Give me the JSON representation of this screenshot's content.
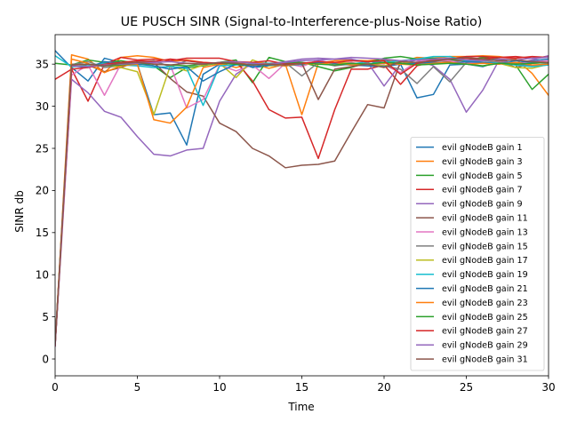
{
  "chart_data": {
    "type": "line",
    "title": "UE PUSCH SINR (Signal-to-Interference-plus-Noise Ratio)",
    "xlabel": "Time",
    "ylabel": "SINR db",
    "xlim": [
      0,
      30
    ],
    "ylim": [
      -2,
      38.5
    ],
    "xticks": [
      0,
      5,
      10,
      15,
      20,
      25,
      30
    ],
    "yticks": [
      0,
      5,
      10,
      15,
      20,
      25,
      30,
      35
    ],
    "grid": false,
    "legend_position": "lower-right",
    "x": [
      0,
      1,
      2,
      3,
      4,
      5,
      6,
      7,
      8,
      9,
      10,
      11,
      12,
      13,
      14,
      15,
      16,
      17,
      18,
      19,
      20,
      21,
      22,
      23,
      24,
      25,
      26,
      27,
      28,
      29,
      30
    ],
    "series": [
      {
        "name": "evil gNodeB gain 1",
        "color": "#1f77b4",
        "values": [
          36.6,
          34.6,
          33.0,
          35.7,
          35.2,
          35.0,
          29.0,
          29.2,
          25.4,
          33.8,
          35.0,
          35.3,
          34.6,
          34.8,
          35.3,
          34.9,
          35.4,
          35.0,
          34.9,
          34.9,
          35.5,
          35.0,
          31.0,
          31.4,
          34.9,
          35.0,
          34.7,
          35.3,
          35.0,
          35.4,
          35.6
        ]
      },
      {
        "name": "evil gNodeB gain 3",
        "color": "#ff7f0e",
        "values": [
          1.8,
          36.1,
          35.6,
          34.0,
          35.8,
          36.0,
          35.8,
          35.3,
          35.5,
          35.2,
          35.1,
          34.6,
          35.1,
          34.5,
          35.0,
          29.0,
          35.1,
          35.4,
          35.5,
          35.4,
          35.6,
          35.2,
          35.8,
          35.7,
          35.9,
          35.9,
          36.0,
          35.9,
          35.6,
          33.9,
          31.3
        ]
      },
      {
        "name": "evil gNodeB gain 5",
        "color": "#2ca02c",
        "values": [
          35.1,
          34.9,
          35.5,
          35.2,
          35.4,
          35.1,
          34.8,
          33.4,
          34.6,
          34.8,
          35.2,
          35.5,
          32.8,
          35.8,
          35.3,
          35.2,
          34.7,
          34.2,
          34.6,
          35.2,
          35.7,
          35.9,
          35.6,
          35.7,
          35.5,
          35.4,
          35.8,
          35.6,
          34.9,
          32.0,
          33.8
        ]
      },
      {
        "name": "evil gNodeB gain 7",
        "color": "#d62728",
        "values": [
          33.2,
          34.4,
          30.6,
          35.0,
          35.8,
          35.5,
          35.6,
          35.4,
          35.7,
          35.7,
          35.7,
          35.3,
          33.0,
          29.6,
          28.6,
          28.7,
          23.8,
          29.6,
          34.4,
          34.4,
          34.9,
          32.6,
          34.8,
          35.3,
          35.6,
          35.9,
          35.9,
          35.8,
          35.9,
          35.7,
          35.9
        ]
      },
      {
        "name": "evil gNodeB gain 9",
        "color": "#9467bd",
        "values": [
          1.5,
          33.2,
          31.6,
          29.4,
          28.7,
          26.4,
          24.3,
          24.1,
          24.8,
          25.0,
          30.6,
          33.8,
          35.1,
          35.0,
          35.3,
          35.6,
          35.7,
          35.6,
          35.6,
          35.2,
          32.4,
          35.0,
          35.5,
          34.8,
          33.2,
          29.3,
          31.9,
          35.5,
          35.0,
          35.5,
          36.0
        ]
      },
      {
        "name": "evil gNodeB gain 11",
        "color": "#8c564b",
        "values": [
          1.6,
          35.0,
          34.9,
          34.1,
          34.6,
          35.3,
          35.2,
          33.3,
          31.7,
          31.2,
          28.0,
          27.0,
          25.0,
          24.1,
          22.7,
          23.0,
          23.1,
          23.5,
          26.9,
          30.2,
          29.8,
          35.3,
          35.0,
          35.4,
          35.3,
          35.5,
          35.6,
          35.4,
          34.6,
          35.1,
          35.2
        ]
      },
      {
        "name": "evil gNodeB gain 13",
        "color": "#e377c2",
        "values": [
          1.7,
          33.7,
          34.9,
          31.3,
          35.0,
          34.9,
          35.1,
          34.9,
          29.8,
          30.8,
          34.9,
          34.2,
          34.9,
          33.3,
          35.1,
          34.7,
          35.5,
          35.0,
          35.2,
          34.8,
          34.9,
          34.0,
          35.3,
          35.5,
          35.4,
          35.1,
          35.1,
          35.3,
          34.9,
          35.3,
          35.4
        ]
      },
      {
        "name": "evil gNodeB gain 15",
        "color": "#7f7f7f",
        "values": [
          1.9,
          34.9,
          35.3,
          34.6,
          34.8,
          35.2,
          35.4,
          34.7,
          35.4,
          35.1,
          35.0,
          35.2,
          35.2,
          35.1,
          35.2,
          33.6,
          35.2,
          34.8,
          35.0,
          35.1,
          34.8,
          34.4,
          32.7,
          34.7,
          32.9,
          35.2,
          35.4,
          35.2,
          35.1,
          34.8,
          34.9
        ]
      },
      {
        "name": "evil gNodeB gain 17",
        "color": "#bcbd22",
        "values": [
          1.8,
          34.7,
          34.8,
          35.0,
          34.6,
          34.1,
          29.0,
          34.8,
          34.2,
          34.9,
          35.1,
          33.4,
          35.5,
          34.8,
          34.9,
          35.0,
          35.1,
          35.2,
          35.1,
          34.9,
          34.8,
          35.3,
          35.0,
          35.1,
          35.2,
          35.0,
          34.8,
          35.1,
          34.6,
          34.5,
          35.0
        ]
      },
      {
        "name": "evil gNodeB gain 19",
        "color": "#17becf",
        "values": [
          36.0,
          34.7,
          34.8,
          35.1,
          34.9,
          34.8,
          34.6,
          34.7,
          34.5,
          30.1,
          34.8,
          34.9,
          35.0,
          35.1,
          34.8,
          35.0,
          35.2,
          35.1,
          35.0,
          35.3,
          35.2,
          35.4,
          35.6,
          35.9,
          35.9,
          35.4,
          35.2,
          35.1,
          34.9,
          34.7,
          34.9
        ]
      },
      {
        "name": "evil gNodeB gain 21",
        "color": "#1f77b4",
        "values": [
          1.6,
          34.8,
          34.6,
          35.3,
          35.1,
          35.0,
          34.8,
          34.4,
          34.7,
          33.0,
          34.1,
          35.0,
          34.7,
          34.9,
          34.8,
          35.0,
          35.2,
          35.1,
          34.9,
          34.8,
          34.7,
          35.0,
          35.1,
          35.2,
          35.1,
          35.3,
          35.2,
          35.0,
          35.4,
          35.2,
          35.1
        ]
      },
      {
        "name": "evil gNodeB gain 23",
        "color": "#ff7f0e",
        "values": [
          1.7,
          35.6,
          35.1,
          34.0,
          34.8,
          35.0,
          28.4,
          28.0,
          29.9,
          34.6,
          35.0,
          35.1,
          35.2,
          35.0,
          34.8,
          35.1,
          35.0,
          35.2,
          34.9,
          35.0,
          35.1,
          35.0,
          34.9,
          35.1,
          35.2,
          35.0,
          35.1,
          35.0,
          35.2,
          34.9,
          35.0
        ]
      },
      {
        "name": "evil gNodeB gain 25",
        "color": "#2ca02c",
        "values": [
          1.8,
          34.9,
          35.0,
          34.8,
          34.9,
          35.1,
          35.0,
          34.9,
          34.8,
          35.0,
          35.1,
          35.0,
          34.9,
          35.0,
          35.1,
          35.2,
          35.0,
          34.9,
          35.1,
          35.0,
          35.2,
          35.1,
          34.9,
          35.0,
          35.1,
          35.0,
          34.8,
          35.1,
          35.0,
          35.1,
          35.2
        ]
      },
      {
        "name": "evil gNodeB gain 27",
        "color": "#d62728",
        "values": [
          1.6,
          34.4,
          34.6,
          35.0,
          35.2,
          35.4,
          35.3,
          35.6,
          35.4,
          35.2,
          35.1,
          35.3,
          35.2,
          35.4,
          35.0,
          35.1,
          35.3,
          35.2,
          35.4,
          35.3,
          35.4,
          33.8,
          35.1,
          35.5,
          35.6,
          35.7,
          35.6,
          35.8,
          35.7,
          35.9,
          35.8
        ]
      },
      {
        "name": "evil gNodeB gain 29",
        "color": "#9467bd",
        "values": [
          1.7,
          34.8,
          34.7,
          34.9,
          35.0,
          35.1,
          35.2,
          35.3,
          35.1,
          35.0,
          35.2,
          35.3,
          35.1,
          35.0,
          35.2,
          35.4,
          35.5,
          35.6,
          35.8,
          35.7,
          35.6,
          35.4,
          35.5,
          35.6,
          35.7,
          35.5,
          35.4,
          35.6,
          35.5,
          35.7,
          35.8
        ]
      },
      {
        "name": "evil gNodeB gain 31",
        "color": "#8c564b",
        "values": [
          1.8,
          34.9,
          35.0,
          34.8,
          35.1,
          35.2,
          35.0,
          34.9,
          35.1,
          35.0,
          35.2,
          35.1,
          34.9,
          35.0,
          34.9,
          35.1,
          30.8,
          34.4,
          34.7,
          35.0,
          34.6,
          35.3,
          35.2,
          35.4,
          35.6,
          35.8,
          35.6,
          35.4,
          35.5,
          35.3,
          35.2
        ]
      }
    ]
  }
}
